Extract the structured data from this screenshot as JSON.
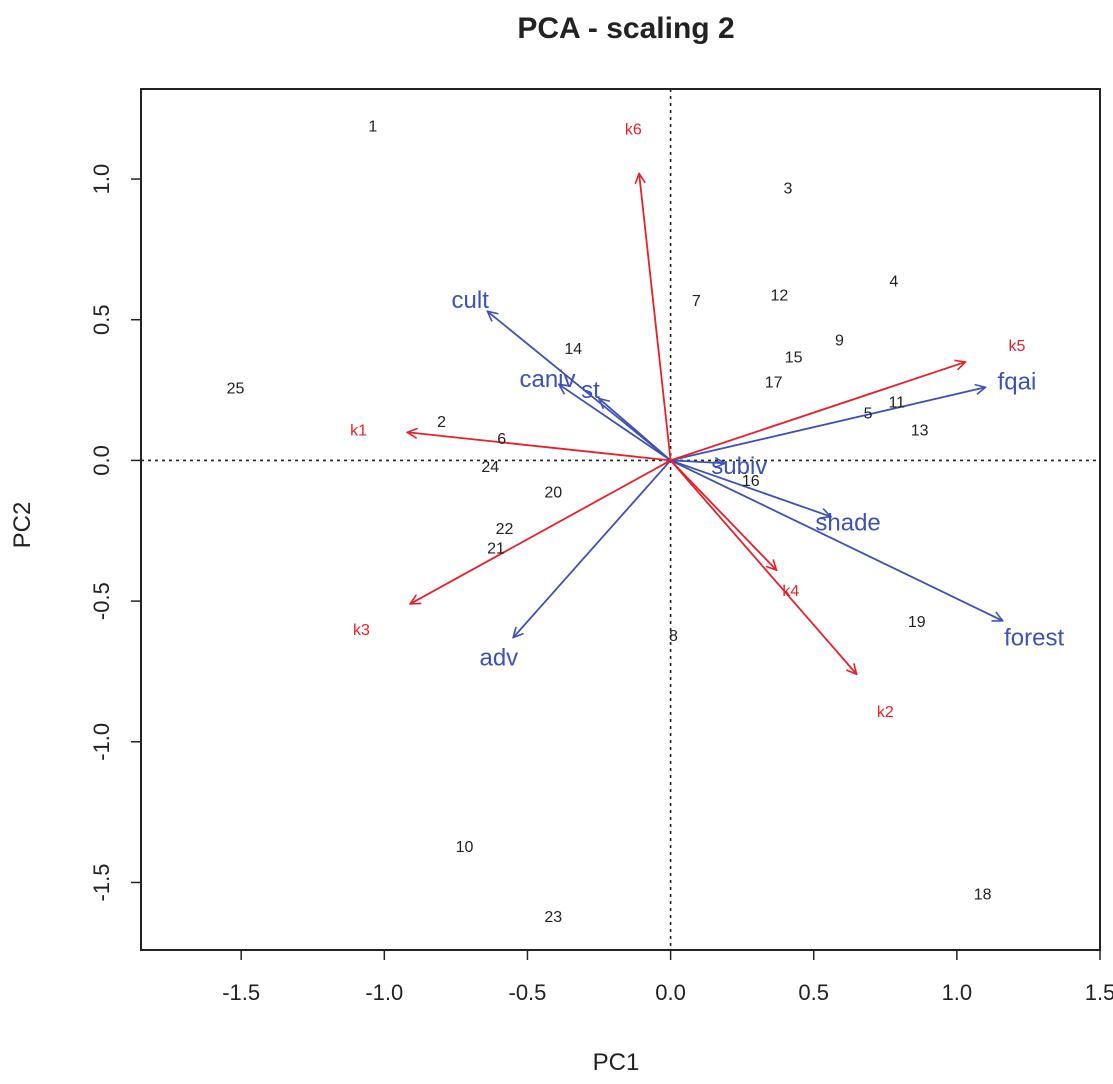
{
  "chart_data": {
    "type": "scatter",
    "title": "PCA - scaling 2",
    "xlabel": "PC1",
    "ylabel": "PC2",
    "xlim": [
      -1.85,
      1.5
    ],
    "ylim": [
      -1.74,
      1.32
    ],
    "xticks": [
      -1.5,
      -1.0,
      -0.5,
      0.0,
      0.5,
      1.0,
      1.5
    ],
    "yticks": [
      -1.5,
      -1.0,
      -0.5,
      0.0,
      0.5,
      1.0
    ],
    "xtick_labels": [
      "-1.5",
      "-1.0",
      "-0.5",
      "0.0",
      "0.5",
      "1.0",
      "1.5"
    ],
    "ytick_labels": [
      "-1.5",
      "-1.0",
      "-0.5",
      "0.0",
      "0.5",
      "1.0"
    ],
    "grid": false,
    "reference_lines": {
      "x": 0,
      "y": 0,
      "style": "dotted"
    },
    "sites": [
      {
        "label": "1",
        "x": -1.04,
        "y": 1.19
      },
      {
        "label": "2",
        "x": -0.8,
        "y": 0.14
      },
      {
        "label": "3",
        "x": 0.41,
        "y": 0.97
      },
      {
        "label": "4",
        "x": 0.78,
        "y": 0.64
      },
      {
        "label": "5",
        "x": 0.69,
        "y": 0.17
      },
      {
        "label": "6",
        "x": -0.59,
        "y": 0.08
      },
      {
        "label": "7",
        "x": 0.09,
        "y": 0.57
      },
      {
        "label": "8",
        "x": 0.01,
        "y": -0.62
      },
      {
        "label": "9",
        "x": 0.59,
        "y": 0.43
      },
      {
        "label": "10",
        "x": -0.72,
        "y": -1.37
      },
      {
        "label": "11",
        "x": 0.79,
        "y": 0.21
      },
      {
        "label": "12",
        "x": 0.38,
        "y": 0.59
      },
      {
        "label": "13",
        "x": 0.87,
        "y": 0.11
      },
      {
        "label": "14",
        "x": -0.34,
        "y": 0.4
      },
      {
        "label": "15",
        "x": 0.43,
        "y": 0.37
      },
      {
        "label": "16",
        "x": 0.28,
        "y": -0.07
      },
      {
        "label": "17",
        "x": 0.36,
        "y": 0.28
      },
      {
        "label": "18",
        "x": 1.09,
        "y": -1.54
      },
      {
        "label": "19",
        "x": 0.86,
        "y": -0.57
      },
      {
        "label": "20",
        "x": -0.41,
        "y": -0.11
      },
      {
        "label": "21",
        "x": -0.61,
        "y": -0.31
      },
      {
        "label": "22",
        "x": -0.58,
        "y": -0.24
      },
      {
        "label": "23",
        "x": -0.41,
        "y": -1.62
      },
      {
        "label": "24",
        "x": -0.63,
        "y": -0.02
      },
      {
        "label": "25",
        "x": -1.52,
        "y": 0.26
      }
    ],
    "response_arrows": [
      {
        "label": "k1",
        "x": -0.92,
        "y": 0.1,
        "label_x": -1.09,
        "label_y": 0.11
      },
      {
        "label": "k2",
        "x": 0.65,
        "y": -0.76,
        "label_x": 0.75,
        "label_y": -0.89
      },
      {
        "label": "k3",
        "x": -0.91,
        "y": -0.51,
        "label_x": -1.08,
        "label_y": -0.6
      },
      {
        "label": "k4",
        "x": 0.37,
        "y": -0.39,
        "label_x": 0.42,
        "label_y": -0.46
      },
      {
        "label": "k5",
        "x": 1.03,
        "y": 0.35,
        "label_x": 1.21,
        "label_y": 0.41
      },
      {
        "label": "k6",
        "x": -0.11,
        "y": 1.02,
        "label_x": -0.13,
        "label_y": 1.18
      }
    ],
    "explanatory_arrows": [
      {
        "label": "cult",
        "x": -0.64,
        "y": 0.53,
        "label_x": -0.7,
        "label_y": 0.57
      },
      {
        "label": "caniv",
        "x": -0.39,
        "y": 0.27,
        "label_x": -0.43,
        "label_y": 0.29
      },
      {
        "label": "st",
        "x": -0.25,
        "y": 0.22,
        "label_x": -0.28,
        "label_y": 0.25
      },
      {
        "label": "subiv",
        "x": 0.19,
        "y": -0.01,
        "label_x": 0.24,
        "label_y": -0.02
      },
      {
        "label": "shade",
        "x": 0.56,
        "y": -0.2,
        "label_x": 0.62,
        "label_y": -0.22
      },
      {
        "label": "fqai",
        "x": 1.1,
        "y": 0.26,
        "label_x": 1.21,
        "label_y": 0.28
      },
      {
        "label": "forest",
        "x": 1.16,
        "y": -0.57,
        "label_x": 1.27,
        "label_y": -0.63
      },
      {
        "label": "adv",
        "x": -0.55,
        "y": -0.63,
        "label_x": -0.6,
        "label_y": -0.7
      }
    ],
    "colors": {
      "response": "#e8202a",
      "explanatory": "#3e51b5",
      "sites": "#222222",
      "frame": "#222222"
    }
  }
}
